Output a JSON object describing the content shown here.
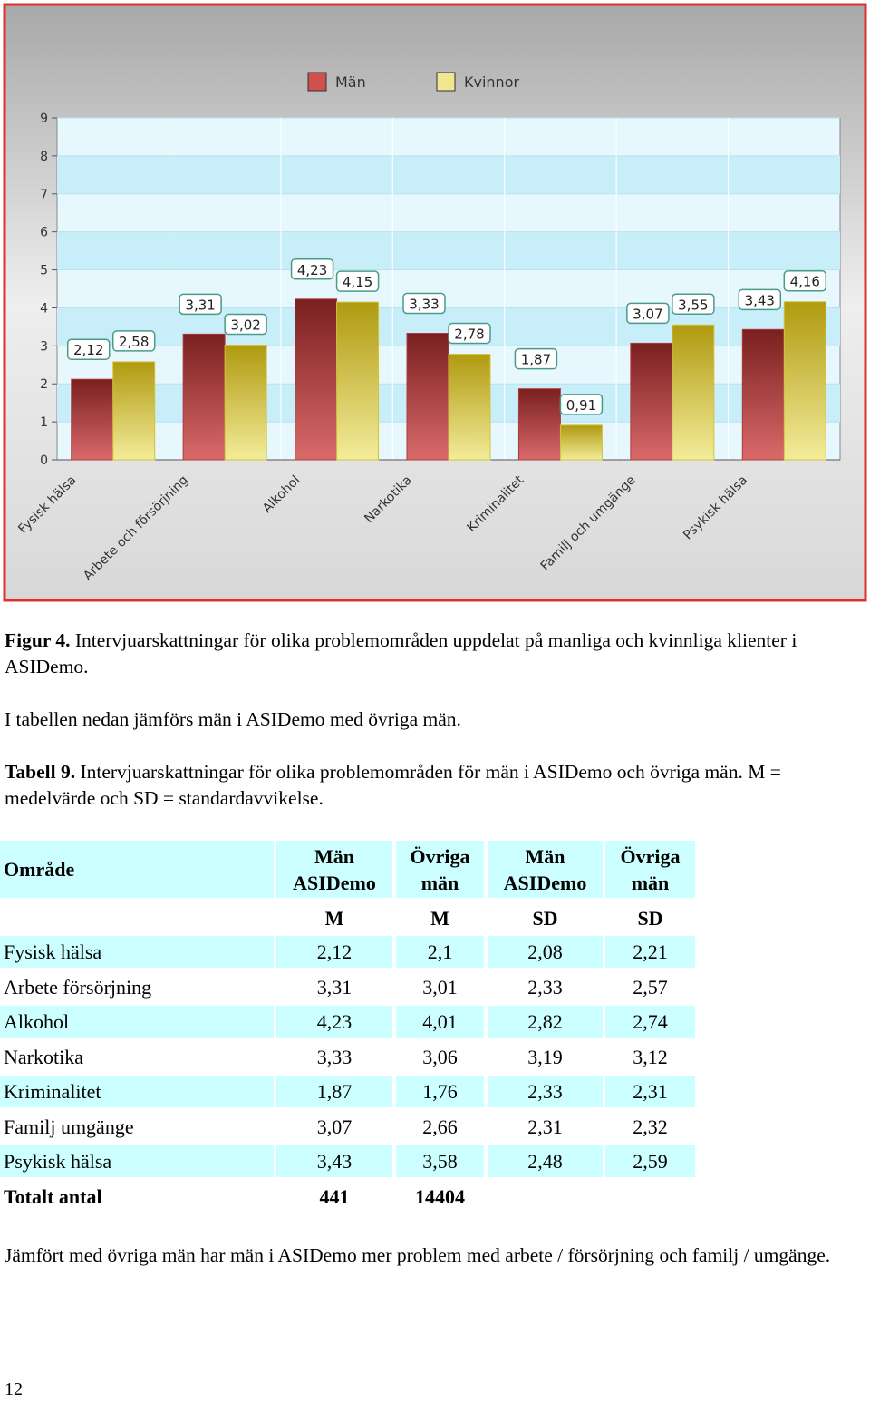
{
  "chart_data": {
    "type": "bar",
    "categories": [
      "Fysisk hälsa",
      "Arbete och försörjning",
      "Alkohol",
      "Narkotika",
      "Kriminalitet",
      "Familj och umgänge",
      "Psykisk hälsa"
    ],
    "series": [
      {
        "name": "Män",
        "color": "#b03a3a",
        "values": [
          2.12,
          3.31,
          4.23,
          3.33,
          1.87,
          3.07,
          3.43
        ],
        "value_labels": [
          "2,12",
          "3,31",
          "4,23",
          "3,33",
          "1,87",
          "3,07",
          "3,43"
        ]
      },
      {
        "name": "Kvinnor",
        "color": "#d4c23a",
        "values": [
          2.58,
          3.02,
          4.15,
          2.78,
          0.91,
          3.55,
          4.16
        ],
        "value_labels": [
          "2,58",
          "3,02",
          "4,15",
          "2,78",
          "0,91",
          "3,55",
          "4,16"
        ]
      }
    ],
    "ylim": [
      0,
      9
    ],
    "yticks": [
      0,
      1,
      2,
      3,
      4,
      5,
      6,
      7,
      8,
      9
    ],
    "grid": true,
    "legend": "top"
  },
  "figure_caption": {
    "label": "Figur 4.",
    "text": "Intervjuarskattningar för olika problemområden uppdelat på manliga och kvinnliga klienter i ASIDemo."
  },
  "paragraph_1": "I tabellen nedan jämförs män i ASIDemo med övriga män.",
  "table_caption": {
    "label": "Tabell 9.",
    "text": "Intervjuarskattningar för olika problemområden för män i ASIDemo och övriga män. M = medelvärde och SD = standardavvikelse."
  },
  "table": {
    "header": [
      "Område",
      "Män ASIDemo",
      "Övriga män",
      "Män ASIDemo",
      "Övriga män"
    ],
    "subheader": [
      "M",
      "M",
      "SD",
      "SD"
    ],
    "rows": [
      [
        "Fysisk hälsa",
        "2,12",
        "2,1",
        "2,08",
        "2,21"
      ],
      [
        "Arbete försörjning",
        "3,31",
        "3,01",
        "2,33",
        "2,57"
      ],
      [
        "Alkohol",
        "4,23",
        "4,01",
        "2,82",
        "2,74"
      ],
      [
        "Narkotika",
        "3,33",
        "3,06",
        "3,19",
        "3,12"
      ],
      [
        "Kriminalitet",
        "1,87",
        "1,76",
        "2,33",
        "2,31"
      ],
      [
        "Familj umgänge",
        "3,07",
        "2,66",
        "2,31",
        "2,32"
      ],
      [
        "Psykisk hälsa",
        "3,43",
        "3,58",
        "2,48",
        "2,59"
      ]
    ],
    "total": [
      "Totalt antal",
      "441",
      "14404"
    ]
  },
  "paragraph_2": "Jämfört med övriga män har män i ASIDemo mer problem med arbete / försörjning och familj / umgänge.",
  "page_number": "12"
}
